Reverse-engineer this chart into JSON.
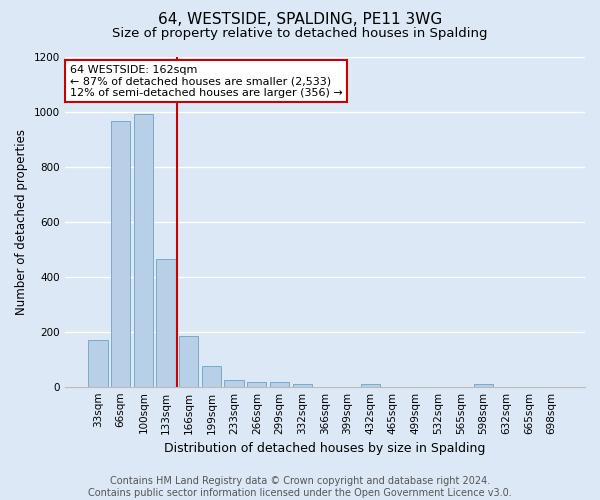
{
  "title": "64, WESTSIDE, SPALDING, PE11 3WG",
  "subtitle": "Size of property relative to detached houses in Spalding",
  "xlabel": "Distribution of detached houses by size in Spalding",
  "ylabel": "Number of detached properties",
  "categories": [
    "33sqm",
    "66sqm",
    "100sqm",
    "133sqm",
    "166sqm",
    "199sqm",
    "233sqm",
    "266sqm",
    "299sqm",
    "332sqm",
    "366sqm",
    "399sqm",
    "432sqm",
    "465sqm",
    "499sqm",
    "532sqm",
    "565sqm",
    "598sqm",
    "632sqm",
    "665sqm",
    "698sqm"
  ],
  "values": [
    170,
    965,
    990,
    465,
    185,
    75,
    25,
    18,
    18,
    10,
    0,
    0,
    10,
    0,
    0,
    0,
    0,
    10,
    0,
    0,
    0
  ],
  "bar_color": "#b8cfe8",
  "bar_edge_color": "#7aaac8",
  "annotation_box_text": "64 WESTSIDE: 162sqm\n← 87% of detached houses are smaller (2,533)\n12% of semi-detached houses are larger (356) →",
  "annotation_box_color": "#ffffff",
  "annotation_box_edge_color": "#cc0000",
  "vline_color": "#cc0000",
  "vline_x_index": 3,
  "ylim": [
    0,
    1200
  ],
  "yticks": [
    0,
    200,
    400,
    600,
    800,
    1000,
    1200
  ],
  "background_color": "#dce8f5",
  "grid_color": "#ffffff",
  "footer_line1": "Contains HM Land Registry data © Crown copyright and database right 2024.",
  "footer_line2": "Contains public sector information licensed under the Open Government Licence v3.0.",
  "title_fontsize": 11,
  "subtitle_fontsize": 9.5,
  "xlabel_fontsize": 9,
  "ylabel_fontsize": 8.5,
  "tick_fontsize": 7.5,
  "footer_fontsize": 7,
  "ann_fontsize": 8
}
